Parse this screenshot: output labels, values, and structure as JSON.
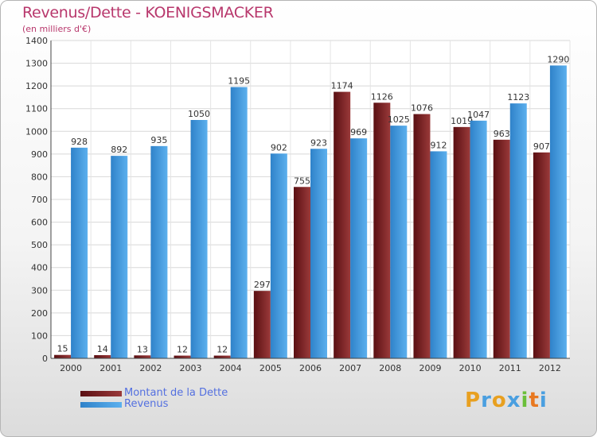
{
  "chart_data": {
    "type": "bar",
    "title": "Revenus/Dette - KOENIGSMACKER",
    "subtitle": "(en milliers d'€)",
    "categories": [
      "2000",
      "2001",
      "2002",
      "2003",
      "2004",
      "2005",
      "2006",
      "2007",
      "2008",
      "2009",
      "2010",
      "2011",
      "2012"
    ],
    "series": [
      {
        "name": "Montant de la Dette",
        "color": "#7a1c1c",
        "values": [
          15,
          14,
          13,
          12,
          12,
          297,
          755,
          1174,
          1126,
          1076,
          1019,
          963,
          907
        ]
      },
      {
        "name": "Revenus",
        "color": "#4a9fe0",
        "values": [
          928,
          892,
          935,
          1050,
          1195,
          902,
          923,
          969,
          1025,
          912,
          1047,
          1123,
          1290
        ]
      }
    ],
    "ylim": [
      0,
      1400
    ],
    "yticks": [
      0,
      100,
      200,
      300,
      400,
      500,
      600,
      700,
      800,
      900,
      1000,
      1100,
      1200,
      1300,
      1400
    ],
    "grid": true,
    "legend_position": "bottom-left"
  },
  "logo": {
    "letters": [
      "P",
      "r",
      "o",
      "x",
      "i",
      "t",
      "i"
    ],
    "colors": [
      "#e8a020",
      "#4a9fe0",
      "#e8a020",
      "#4a9fe0",
      "#6bbf3a",
      "#e87820",
      "#4a9fe0"
    ]
  }
}
